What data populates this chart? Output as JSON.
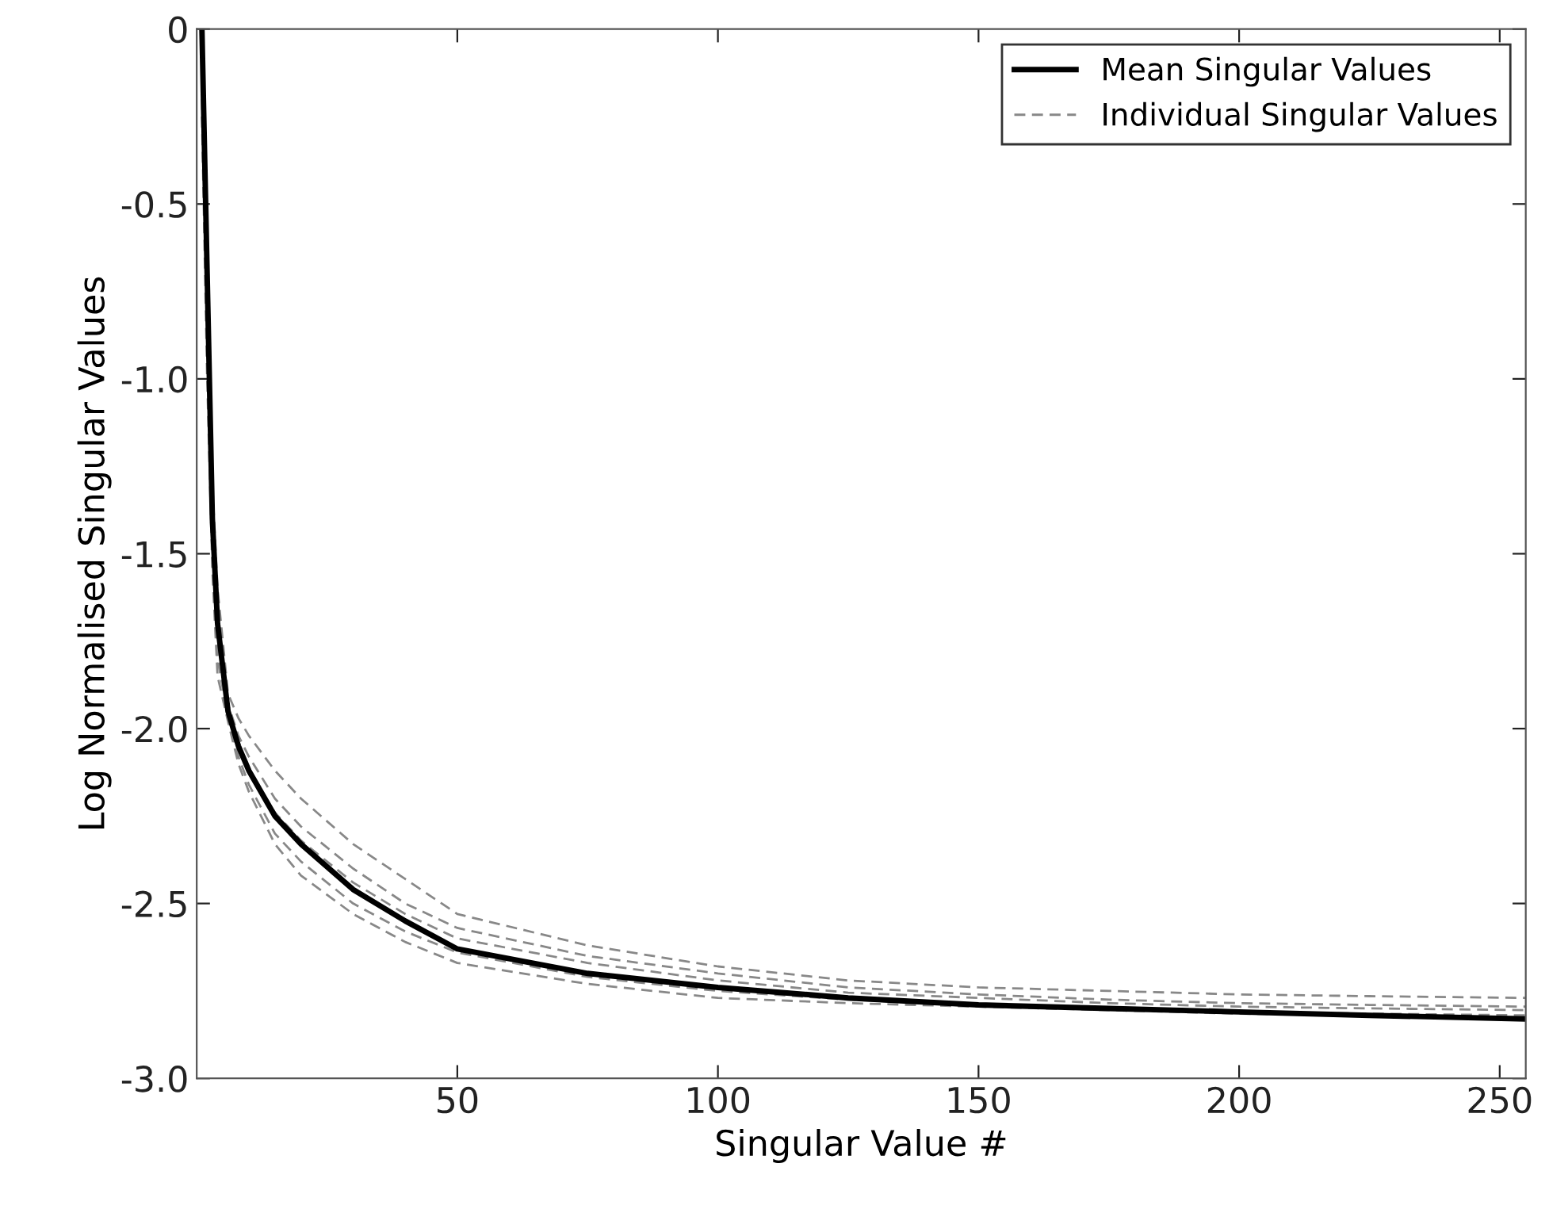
{
  "chart_data": {
    "type": "line",
    "xlabel": "Singular Value #",
    "ylabel": "Log Normalised Singular Values",
    "xlim": [
      0,
      255
    ],
    "ylim": [
      -3.0,
      0
    ],
    "xticks": [
      50,
      100,
      150,
      200,
      250
    ],
    "yticks": [
      {
        "value": -3.0,
        "label": "-3.0"
      },
      {
        "value": -2.5,
        "label": "-2.5"
      },
      {
        "value": -2.0,
        "label": "-2.0"
      },
      {
        "value": -1.5,
        "label": "-1.5"
      },
      {
        "value": -1.0,
        "label": "-1.0"
      },
      {
        "value": -0.5,
        "label": "-0.5"
      },
      0
    ],
    "grid": false,
    "legend": "top right",
    "x": [
      1,
      2,
      3,
      4,
      6,
      8,
      10,
      15,
      20,
      30,
      40,
      50,
      75,
      100,
      125,
      150,
      175,
      200,
      225,
      255
    ],
    "series": [
      {
        "name": "Individual Singular Values",
        "color": "#888888",
        "line_style": "dashed",
        "values": [
          -0.1,
          -0.8,
          -1.3,
          -1.6,
          -1.9,
          -1.97,
          -2.02,
          -2.12,
          -2.2,
          -2.33,
          -2.43,
          -2.53,
          -2.62,
          -2.68,
          -2.72,
          -2.74,
          -2.75,
          -2.76,
          -2.765,
          -2.77
        ]
      },
      {
        "color": "#888888",
        "line_style": "dashed",
        "values": [
          -0.05,
          -0.75,
          -1.35,
          -1.65,
          -1.93,
          -2.02,
          -2.08,
          -2.2,
          -2.28,
          -2.4,
          -2.5,
          -2.57,
          -2.65,
          -2.7,
          -2.74,
          -2.76,
          -2.775,
          -2.785,
          -2.79,
          -2.795
        ]
      },
      {
        "color": "#888888",
        "line_style": "dashed",
        "values": [
          -0.15,
          -0.6,
          -1.45,
          -1.75,
          -1.95,
          -2.05,
          -2.12,
          -2.24,
          -2.32,
          -2.44,
          -2.53,
          -2.6,
          -2.67,
          -2.72,
          -2.755,
          -2.77,
          -2.785,
          -2.795,
          -2.8,
          -2.805
        ]
      },
      {
        "color": "#888888",
        "line_style": "dashed",
        "values": [
          -0.2,
          -0.9,
          -1.5,
          -1.8,
          -1.97,
          -2.08,
          -2.16,
          -2.3,
          -2.38,
          -2.5,
          -2.58,
          -2.64,
          -2.71,
          -2.75,
          -2.775,
          -2.79,
          -2.8,
          -2.81,
          -2.815,
          -2.82
        ]
      },
      {
        "color": "#888888",
        "line_style": "dashed",
        "values": [
          -0.25,
          -1.0,
          -1.55,
          -1.85,
          -1.98,
          -2.1,
          -2.18,
          -2.33,
          -2.42,
          -2.53,
          -2.61,
          -2.67,
          -2.73,
          -2.77,
          -2.785,
          -2.795,
          -2.805,
          -2.815,
          -2.82,
          -2.825
        ]
      },
      {
        "name": "Mean Singular Values",
        "color": "#000000",
        "line_style": "solid",
        "values": [
          0,
          -0.7,
          -1.4,
          -1.7,
          -1.95,
          -2.05,
          -2.12,
          -2.25,
          -2.33,
          -2.46,
          -2.55,
          -2.63,
          -2.7,
          -2.74,
          -2.77,
          -2.79,
          -2.8,
          -2.81,
          -2.82,
          -2.83
        ]
      }
    ]
  }
}
